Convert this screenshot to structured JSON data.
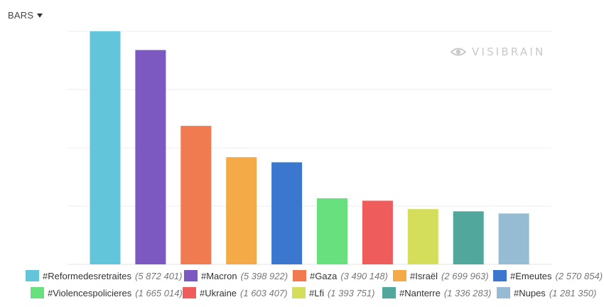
{
  "toolbar": {
    "mode_label": "BARS"
  },
  "watermark": {
    "text": "VISIBRAIN",
    "icon": "eye-icon"
  },
  "chart_data": {
    "type": "bar",
    "title": "",
    "xlabel": "",
    "ylabel": "",
    "ylim": [
      0,
      5872401
    ],
    "grid": true,
    "legend_position": "bottom",
    "categories": [
      "#Reformedesretraites",
      "#Macron",
      "#Gaza",
      "#Israël",
      "#Emeutes",
      "#Violencespolicieres",
      "#Ukraine",
      "#Lfi",
      "#Nanterre",
      "#Nupes"
    ],
    "values": [
      5872401,
      5398922,
      3490148,
      2699963,
      2570854,
      1665014,
      1603407,
      1393751,
      1336283,
      1281350
    ],
    "colors": [
      "#63c5da",
      "#7b59c0",
      "#f07b50",
      "#f5aa48",
      "#3b77cf",
      "#68e07d",
      "#ee5d5b",
      "#d4de5a",
      "#51a79b",
      "#95bcd3"
    ],
    "legend": [
      {
        "label": "#Reformedesretraites",
        "value": "(5 872 401)"
      },
      {
        "label": "#Macron",
        "value": "(5 398 922)"
      },
      {
        "label": "#Gaza",
        "value": "(3 490 148)"
      },
      {
        "label": "#Israël",
        "value": "(2 699 963)"
      },
      {
        "label": "#Emeutes",
        "value": "(2 570 854)"
      },
      {
        "label": "#Violencespolicieres",
        "value": "(1 665 014)"
      },
      {
        "label": "#Ukraine",
        "value": "(1 603 407)"
      },
      {
        "label": "#Lfi",
        "value": "(1 393 751)"
      },
      {
        "label": "#Nanterre",
        "value": "(1 336 283)"
      },
      {
        "label": "#Nupes",
        "value": "(1 281 350)"
      }
    ]
  }
}
